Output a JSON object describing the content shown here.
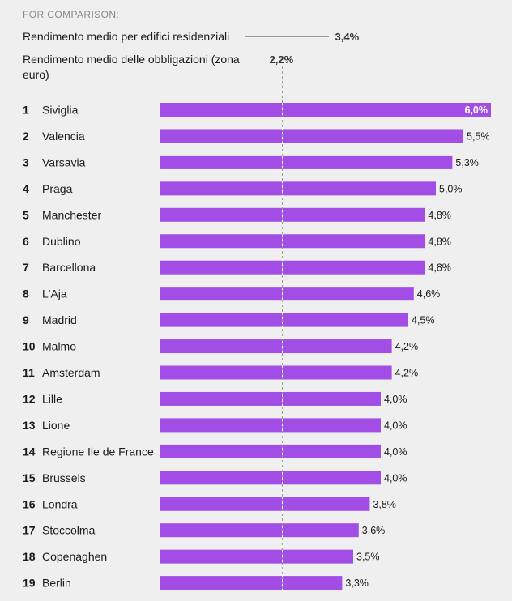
{
  "comparison_title": "FOR COMPARISON:",
  "reference_lines": [
    {
      "label": "Rendimento medio per edifici residenziali",
      "value": 3.4,
      "value_label": "3,4%"
    },
    {
      "label": "Rendimento medio delle obbligazioni (zona euro)",
      "value": 2.2,
      "value_label": "2,2%"
    }
  ],
  "colors": {
    "bar": "#a24de6",
    "background": "#efefef",
    "reference_line": "#ffffff"
  },
  "chart_data": {
    "type": "bar",
    "orientation": "horizontal",
    "ranks": [
      "1",
      "2",
      "3",
      "4",
      "5",
      "6",
      "7",
      "8",
      "9",
      "10",
      "11",
      "12",
      "13",
      "14",
      "15",
      "16",
      "17",
      "18",
      "19"
    ],
    "categories": [
      "Siviglia",
      "Valencia",
      "Varsavia",
      "Praga",
      "Manchester",
      "Dublino",
      "Barcellona",
      "L'Aja",
      "Madrid",
      "Malmo",
      "Amsterdam",
      "Lille",
      "Lione",
      "Regione Ile de France",
      "Brussels",
      "Londra",
      "Stoccolma",
      "Copenaghen",
      "Berlin"
    ],
    "values": [
      6.0,
      5.5,
      5.3,
      5.0,
      4.8,
      4.8,
      4.8,
      4.6,
      4.5,
      4.2,
      4.2,
      4.0,
      4.0,
      4.0,
      4.0,
      3.8,
      3.6,
      3.5,
      3.3
    ],
    "value_labels": [
      "6,0%",
      "5,5%",
      "5,3%",
      "5,0%",
      "4,8%",
      "4,8%",
      "4,8%",
      "4,6%",
      "4,5%",
      "4,2%",
      "4,2%",
      "4,0%",
      "4,0%",
      "4,0%",
      "4,0%",
      "3,8%",
      "3,6%",
      "3,5%",
      "3,3%"
    ],
    "xlim": [
      0,
      6.0
    ],
    "grid": false
  }
}
